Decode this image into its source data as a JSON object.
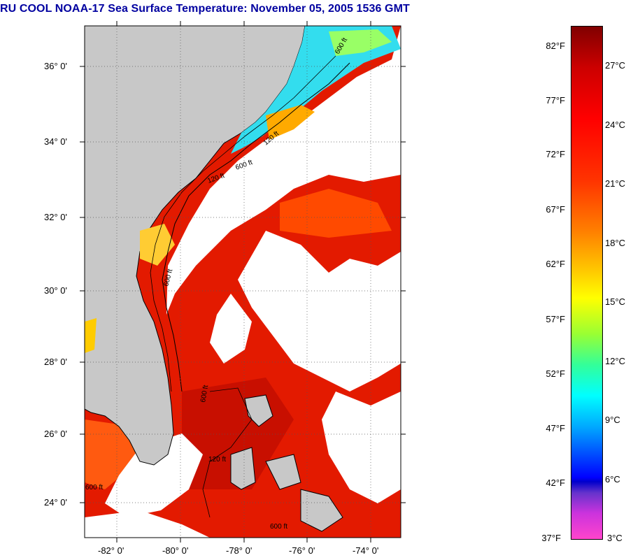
{
  "title": "RU COOL  NOAA-17  Sea Surface Temperature:  November 05, 2005 1536 GMT",
  "map": {
    "lat_labels": [
      "36° 0'",
      "34° 0'",
      "32° 0'",
      "30° 0'",
      "28° 0'",
      "26° 0'",
      "24° 0'"
    ],
    "lon_labels": [
      "-82° 0'",
      "-80° 0'",
      "-78° 0'",
      "-76° 0'",
      "-74° 0'"
    ],
    "contour_labels": [
      "600 ft",
      "120 ft",
      "600 ft",
      "120 ft",
      "600 ft",
      "600 ft",
      "120 ft",
      "600 ft",
      "600 ft"
    ],
    "colors": {
      "land": "#c8c8c8",
      "cloud": "#ffffff",
      "warm": "#e61e00",
      "coastal_cool": "#33ddee",
      "coastal_mid": "#99ff66"
    }
  },
  "colorbar": {
    "fahrenheit": [
      "82°F",
      "77°F",
      "72°F",
      "67°F",
      "62°F",
      "57°F",
      "52°F",
      "47°F",
      "42°F",
      "37°F"
    ],
    "celsius": [
      "27°C",
      "24°C",
      "21°C",
      "18°C",
      "15°C",
      "12°C",
      "9°C",
      "6°C",
      "3°C"
    ]
  }
}
